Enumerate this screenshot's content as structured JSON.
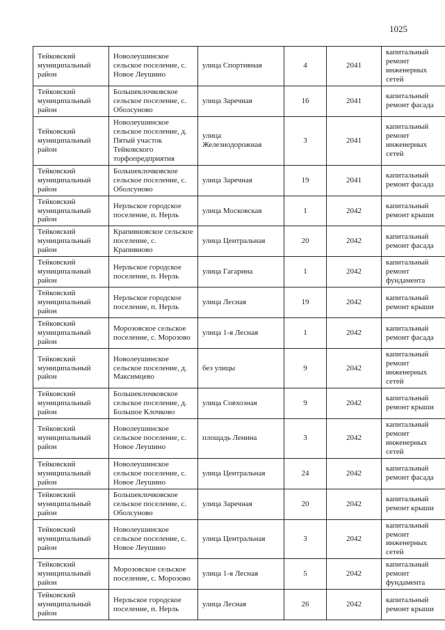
{
  "page": {
    "number": "1025"
  },
  "table": {
    "columns": [
      "district",
      "settlement",
      "street",
      "house_number",
      "year",
      "repair_type"
    ],
    "rows": [
      {
        "district": "Тейковский муниципальный район",
        "settlement": "Новолеушинское сельское поселение, с. Новое Леушино",
        "street": "улица Спортивная",
        "house_number": "4",
        "year": "2041",
        "repair_type": "капитальный ремонт инженерных сетей"
      },
      {
        "district": "Тейковский муниципальный район",
        "settlement": "Большеклочковское сельское поселение, с. Оболсуново",
        "street": "улица Заречная",
        "house_number": "16",
        "year": "2041",
        "repair_type": "капитальный ремонт фасада"
      },
      {
        "district": "Тейковский муниципальный район",
        "settlement": "Новолеушинское сельское поселение, д. Пятый участок Тейковского торфопредприятия",
        "street": "улица Железнодорожная",
        "house_number": "3",
        "year": "2041",
        "repair_type": "капитальный ремонт инженерных сетей"
      },
      {
        "district": "Тейковский муниципальный район",
        "settlement": "Большеклочковское сельское поселение, с. Оболсуново",
        "street": "улица Заречная",
        "house_number": "19",
        "year": "2041",
        "repair_type": "капитальный ремонт фасада"
      },
      {
        "district": "Тейковский муниципальный район",
        "settlement": "Нерльское городское поселение, п. Нерль",
        "street": "улица Московская",
        "house_number": "1",
        "year": "2042",
        "repair_type": "капитальный ремонт крыши"
      },
      {
        "district": "Тейковский муниципальный район",
        "settlement": "Крапивновское сельское поселение, с. Крапивново",
        "street": "улица Центральная",
        "house_number": "20",
        "year": "2042",
        "repair_type": "капитальный ремонт фасада"
      },
      {
        "district": "Тейковский муниципальный район",
        "settlement": "Нерльское городское поселение, п. Нерль",
        "street": "улица Гагарина",
        "house_number": "1",
        "year": "2042",
        "repair_type": "капитальный ремонт фундамента"
      },
      {
        "district": "Тейковский муниципальный район",
        "settlement": "Нерльское городское поселение, п. Нерль",
        "street": "улица Лесная",
        "house_number": "19",
        "year": "2042",
        "repair_type": "капитальный ремонт крыши"
      },
      {
        "district": "Тейковский муниципальный район",
        "settlement": "Морозовское сельское поселение, с. Морозово",
        "street": "улица 1-я Лесная",
        "house_number": "1",
        "year": "2042",
        "repair_type": "капитальный ремонт фасада"
      },
      {
        "district": "Тейковский муниципальный район",
        "settlement": "Новолеушинское сельское поселение, д. Максимцево",
        "street": "без улицы",
        "house_number": "9",
        "year": "2042",
        "repair_type": "капитальный ремонт инженерных сетей"
      },
      {
        "district": "Тейковский муниципальный район",
        "settlement": "Большеклочковское сельское поселение, д. Большое Клочково",
        "street": "улица Совхозная",
        "house_number": "9",
        "year": "2042",
        "repair_type": "капитальный ремонт крыши"
      },
      {
        "district": "Тейковский муниципальный район",
        "settlement": "Новолеушинское сельское поселение, с. Новое Леушино",
        "street": "площадь Ленина",
        "house_number": "3",
        "year": "2042",
        "repair_type": "капитальный ремонт инженерных сетей"
      },
      {
        "district": "Тейковский муниципальный район",
        "settlement": "Новолеушинское сельское поселение, с. Новое Леушино",
        "street": "улица Центральная",
        "house_number": "24",
        "year": "2042",
        "repair_type": "капитальный ремонт фасада"
      },
      {
        "district": "Тейковский муниципальный район",
        "settlement": "Большеклочковское сельское поселение, с. Оболсуново",
        "street": "улица Заречная",
        "house_number": "20",
        "year": "2042",
        "repair_type": "капитальный ремонт крыши"
      },
      {
        "district": "Тейковский муниципальный район",
        "settlement": "Новолеушинское сельское поселение, с. Новое Леушино",
        "street": "улица Центральная",
        "house_number": "3",
        "year": "2042",
        "repair_type": "капитальный ремонт инженерных сетей"
      },
      {
        "district": "Тейковский муниципальный район",
        "settlement": "Морозовское сельское поселение, с. Морозово",
        "street": "улица 1-я Лесная",
        "house_number": "5",
        "year": "2042",
        "repair_type": "капитальный ремонт фундамента"
      },
      {
        "district": "Тейковский муниципальный район",
        "settlement": "Нерльское городское поселение, п. Нерль",
        "street": "улица Лесная",
        "house_number": "26",
        "year": "2042",
        "repair_type": "капитальный ремонт крыши"
      }
    ]
  }
}
